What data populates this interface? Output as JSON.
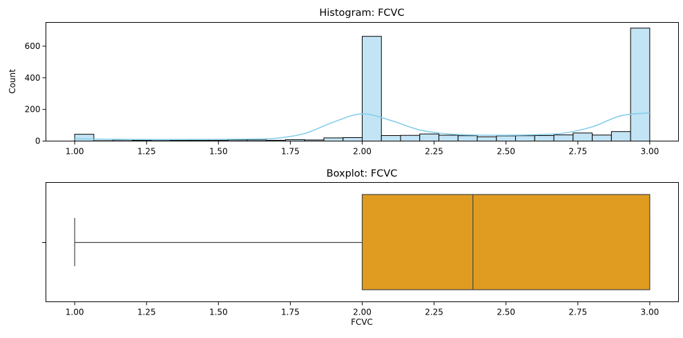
{
  "chart_data": [
    {
      "type": "histogram",
      "title": "Histogram: FCVC",
      "xlabel": "",
      "ylabel": "Count",
      "xlim": [
        0.9,
        3.1
      ],
      "ylim": [
        0,
        750
      ],
      "x_ticks": [
        "1.00",
        "1.25",
        "1.50",
        "1.75",
        "2.00",
        "2.25",
        "2.50",
        "2.75",
        "3.00"
      ],
      "y_ticks": [
        "0",
        "200",
        "400",
        "600"
      ],
      "bins": {
        "start": 1.0,
        "width": 0.0667,
        "counts": [
          43,
          2,
          7,
          4,
          6,
          5,
          5,
          5,
          7,
          7,
          5,
          9,
          7,
          20,
          22,
          662,
          35,
          36,
          45,
          37,
          34,
          27,
          33,
          34,
          35,
          39,
          51,
          38,
          60,
          714
        ]
      },
      "kde": {
        "x": [
          1.0,
          1.2,
          1.4,
          1.6,
          1.7,
          1.8,
          1.9,
          2.0,
          2.1,
          2.2,
          2.3,
          2.4,
          2.5,
          2.6,
          2.7,
          2.8,
          2.9,
          3.0
        ],
        "y": [
          14,
          10,
          10,
          12,
          18,
          48,
          120,
          172,
          130,
          70,
          45,
          38,
          37,
          40,
          50,
          90,
          160,
          178
        ]
      },
      "colors": {
        "bar_fill": "#c3e4f5",
        "bar_edge": "#000000",
        "kde": "#87ceeb"
      },
      "grid": false
    },
    {
      "type": "boxplot",
      "title": "Boxplot: FCVC",
      "xlabel": "FCVC",
      "ylabel": "",
      "xlim": [
        0.9,
        3.1
      ],
      "x_ticks": [
        "1.00",
        "1.25",
        "1.50",
        "1.75",
        "2.00",
        "2.25",
        "2.50",
        "2.75",
        "3.00"
      ],
      "stats": {
        "whisker_low": 1.0,
        "q1": 2.0,
        "median": 2.385,
        "q3": 3.0,
        "whisker_high": 3.0
      },
      "colors": {
        "box_fill": "#e09c21",
        "line": "#444444"
      },
      "grid": false
    }
  ]
}
